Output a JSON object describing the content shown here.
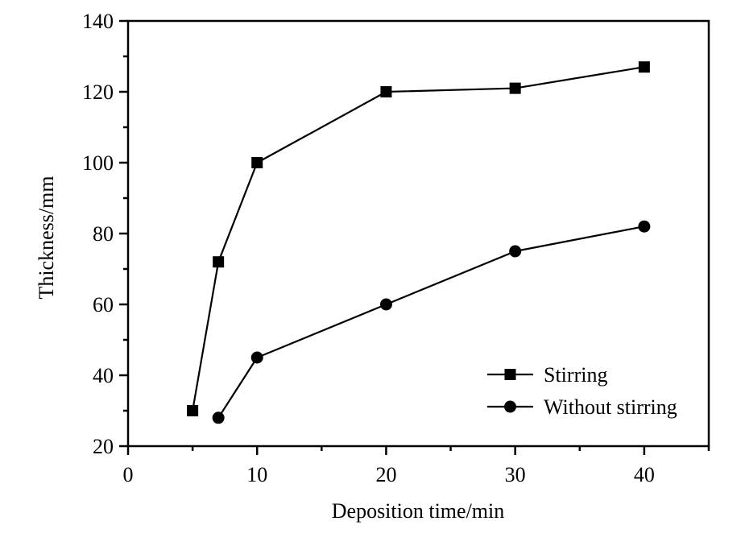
{
  "chart_data": {
    "type": "line",
    "title": "",
    "xlabel": "Deposition time/min",
    "ylabel": "Thickness/mm",
    "xlim": [
      0,
      45
    ],
    "ylim": [
      20,
      140
    ],
    "xticks": [
      0,
      10,
      20,
      30,
      40
    ],
    "xtick_labels": [
      "0",
      "10",
      "20",
      "30",
      "40"
    ],
    "xminor": [
      5,
      15,
      25,
      35,
      45
    ],
    "yticks": [
      20,
      40,
      60,
      80,
      100,
      120,
      140
    ],
    "ytick_labels": [
      "20",
      "40",
      "60",
      "80",
      "100",
      "120",
      "140"
    ],
    "yminor": [
      30,
      50,
      70,
      90,
      110,
      130
    ],
    "grid": false,
    "legend_position": "bottom-right",
    "series": [
      {
        "name": "Stirring",
        "marker": "square",
        "color": "#000000",
        "x": [
          5,
          7,
          10,
          20,
          30,
          40
        ],
        "y": [
          30,
          72,
          100,
          120,
          121,
          127
        ]
      },
      {
        "name": "Without stirring",
        "marker": "circle",
        "color": "#000000",
        "x": [
          7,
          10,
          20,
          30,
          40
        ],
        "y": [
          28,
          45,
          60,
          75,
          82
        ]
      }
    ]
  }
}
